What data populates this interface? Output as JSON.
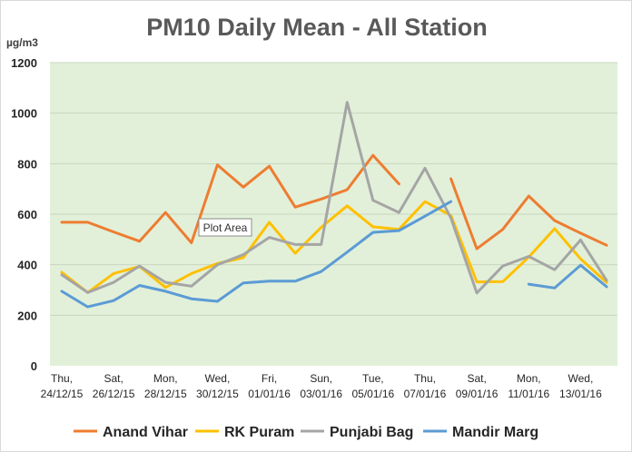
{
  "chart_data": {
    "type": "line",
    "title": "PM10 Daily Mean - All Station",
    "ylabel": "µg/m3",
    "ylim": [
      0,
      1200
    ],
    "yticks": [
      "0",
      "200",
      "400",
      "600",
      "800",
      "1000",
      "1200"
    ],
    "ytick_values": [
      0,
      200,
      400,
      600,
      800,
      1000,
      1200
    ],
    "grid": true,
    "legend_position": "bottom",
    "x_tick_labels": [
      {
        "day": "Thu,",
        "date": "24/12/15"
      },
      {
        "day": "Sat,",
        "date": "26/12/15"
      },
      {
        "day": "Mon,",
        "date": "28/12/15"
      },
      {
        "day": "Wed,",
        "date": "30/12/15"
      },
      {
        "day": "Fri,",
        "date": "01/01/16"
      },
      {
        "day": "Sun,",
        "date": "03/01/16"
      },
      {
        "day": "Tue,",
        "date": "05/01/16"
      },
      {
        "day": "Thu,",
        "date": "07/01/16"
      },
      {
        "day": "Sat,",
        "date": "09/01/16"
      },
      {
        "day": "Mon,",
        "date": "11/01/16"
      },
      {
        "day": "Wed,",
        "date": "13/01/16"
      }
    ],
    "x": [
      "24/12/15",
      "25/12/15",
      "26/12/15",
      "27/12/15",
      "28/12/15",
      "29/12/15",
      "30/12/15",
      "31/12/15",
      "01/01/16",
      "02/01/16",
      "03/01/16",
      "04/01/16",
      "05/01/16",
      "06/01/16",
      "07/01/16",
      "08/01/16",
      "09/01/16",
      "10/01/16",
      "11/01/16",
      "12/01/16",
      "13/01/16",
      "14/01/16"
    ],
    "series": [
      {
        "name": "Anand Vihar",
        "color": "#ED7D31",
        "values": [
          568,
          568,
          530,
          493,
          607,
          487,
          795,
          707,
          790,
          628,
          660,
          697,
          833,
          720,
          null,
          740,
          463,
          540,
          672,
          575,
          525,
          477
        ]
      },
      {
        "name": "RK Puram",
        "color": "#FFC000",
        "values": [
          370,
          290,
          365,
          393,
          310,
          365,
          405,
          428,
          568,
          445,
          548,
          633,
          550,
          540,
          650,
          595,
          332,
          333,
          430,
          543,
          423,
          330
        ]
      },
      {
        "name": "Punjabi Bag",
        "color": "#A5A5A5",
        "values": [
          360,
          290,
          330,
          395,
          330,
          315,
          400,
          440,
          508,
          480,
          480,
          1043,
          655,
          607,
          782,
          585,
          288,
          395,
          433,
          380,
          498,
          338
        ]
      },
      {
        "name": "Mandir Marg",
        "color": "#5B9BD5",
        "values": [
          295,
          233,
          258,
          318,
          295,
          265,
          255,
          328,
          335,
          335,
          373,
          450,
          528,
          535,
          592,
          650,
          null,
          null,
          323,
          308,
          398,
          313
        ]
      }
    ]
  },
  "tooltip": {
    "label": "Plot Area"
  },
  "colors": {
    "plot_background": "#E2F0D9",
    "gridline": "#C9D6C0"
  }
}
